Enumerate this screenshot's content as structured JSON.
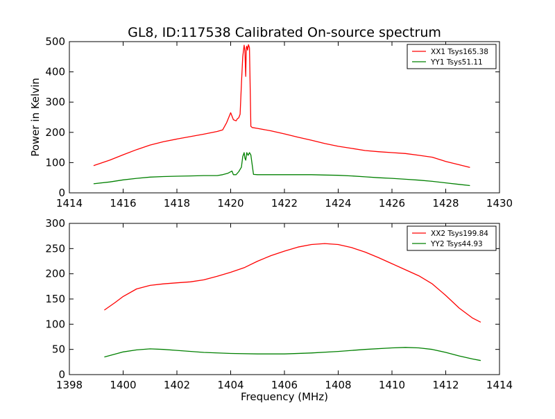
{
  "chart_data": [
    {
      "type": "line",
      "title": "GL8, ID:117538 Calibrated On-source spectrum",
      "xlabel": "",
      "ylabel": "Power in Kelvin",
      "xlim": [
        1414,
        1430
      ],
      "ylim": [
        0,
        500
      ],
      "xticks": [
        "1414",
        "1416",
        "1418",
        "1420",
        "1422",
        "1424",
        "1426",
        "1428",
        "1430"
      ],
      "yticks": [
        "0",
        "100",
        "200",
        "300",
        "400",
        "500"
      ],
      "grid": false,
      "legend_position": "top-right",
      "series": [
        {
          "name": "XX1 Tsys165.38",
          "color": "#ff0000",
          "x": [
            1414.9,
            1415.5,
            1416.0,
            1416.5,
            1417.0,
            1417.5,
            1418.0,
            1418.5,
            1419.0,
            1419.5,
            1419.7,
            1419.85,
            1420.0,
            1420.1,
            1420.15,
            1420.2,
            1420.25,
            1420.3,
            1420.35,
            1420.4,
            1420.45,
            1420.5,
            1420.53,
            1420.56,
            1420.58,
            1420.6,
            1420.63,
            1420.66,
            1420.7,
            1420.75,
            1420.8,
            1421.0,
            1421.5,
            1422.0,
            1422.5,
            1423.0,
            1423.5,
            1424.0,
            1424.5,
            1425.0,
            1425.5,
            1426.0,
            1426.5,
            1427.0,
            1427.5,
            1428.0,
            1428.5,
            1428.9
          ],
          "values": [
            90,
            108,
            126,
            143,
            158,
            169,
            178,
            186,
            194,
            203,
            208,
            232,
            265,
            242,
            240,
            238,
            245,
            248,
            260,
            360,
            450,
            488,
            470,
            385,
            480,
            485,
            472,
            490,
            480,
            220,
            216,
            213,
            205,
            195,
            184,
            174,
            163,
            154,
            147,
            140,
            136,
            133,
            130,
            124,
            118,
            104,
            93,
            84
          ]
        },
        {
          "name": "YY1 Tsys51.11",
          "color": "#008000",
          "x": [
            1414.9,
            1415.5,
            1416.0,
            1416.5,
            1417.0,
            1417.5,
            1418.0,
            1418.5,
            1419.0,
            1419.5,
            1419.7,
            1419.9,
            1420.05,
            1420.1,
            1420.2,
            1420.3,
            1420.4,
            1420.45,
            1420.5,
            1420.53,
            1420.56,
            1420.6,
            1420.65,
            1420.7,
            1420.75,
            1420.85,
            1421.0,
            1421.5,
            1422.0,
            1422.5,
            1423.0,
            1423.5,
            1424.0,
            1424.5,
            1425.0,
            1425.5,
            1426.0,
            1426.5,
            1427.0,
            1427.5,
            1428.0,
            1428.5,
            1428.9
          ],
          "values": [
            30,
            36,
            43,
            48,
            52,
            54,
            55,
            56,
            57,
            57,
            60,
            65,
            72,
            60,
            60,
            70,
            85,
            120,
            133,
            115,
            108,
            133,
            124,
            133,
            125,
            61,
            60,
            60,
            60,
            60,
            60,
            59,
            58,
            56,
            53,
            50,
            48,
            45,
            42,
            38,
            33,
            28,
            24
          ]
        }
      ]
    },
    {
      "type": "line",
      "title": "",
      "xlabel": "Frequency (MHz)",
      "ylabel": "",
      "xlim": [
        1398,
        1414
      ],
      "ylim": [
        0,
        300
      ],
      "xticks": [
        "1398",
        "1400",
        "1402",
        "1404",
        "1406",
        "1408",
        "1410",
        "1412",
        "1414"
      ],
      "yticks": [
        "0",
        "50",
        "100",
        "150",
        "200",
        "250",
        "300"
      ],
      "grid": false,
      "legend_position": "top-right",
      "series": [
        {
          "name": "XX2 Tsys199.84",
          "color": "#ff0000",
          "x": [
            1399.3,
            1399.7,
            1400.0,
            1400.5,
            1401.0,
            1401.5,
            1402.0,
            1402.5,
            1403.0,
            1403.5,
            1404.0,
            1404.5,
            1405.0,
            1405.5,
            1406.0,
            1406.5,
            1407.0,
            1407.5,
            1408.0,
            1408.5,
            1409.0,
            1409.5,
            1410.0,
            1410.5,
            1411.0,
            1411.5,
            1412.0,
            1412.5,
            1413.0,
            1413.3
          ],
          "values": [
            128,
            143,
            155,
            170,
            177,
            180,
            182,
            184,
            188,
            195,
            203,
            212,
            225,
            236,
            245,
            253,
            258,
            260,
            258,
            252,
            243,
            232,
            220,
            208,
            196,
            180,
            157,
            132,
            112,
            104
          ]
        },
        {
          "name": "YY2 Tsys44.93",
          "color": "#008000",
          "x": [
            1399.3,
            1400.0,
            1400.5,
            1401.0,
            1401.5,
            1402.0,
            1403.0,
            1404.0,
            1405.0,
            1406.0,
            1407.0,
            1408.0,
            1409.0,
            1410.0,
            1410.5,
            1411.0,
            1411.5,
            1412.0,
            1412.5,
            1413.0,
            1413.3
          ],
          "values": [
            35,
            45,
            49,
            51,
            50,
            48,
            44,
            42,
            41,
            41,
            43,
            46,
            50,
            53,
            54,
            53,
            50,
            44,
            37,
            31,
            28
          ]
        }
      ]
    }
  ]
}
